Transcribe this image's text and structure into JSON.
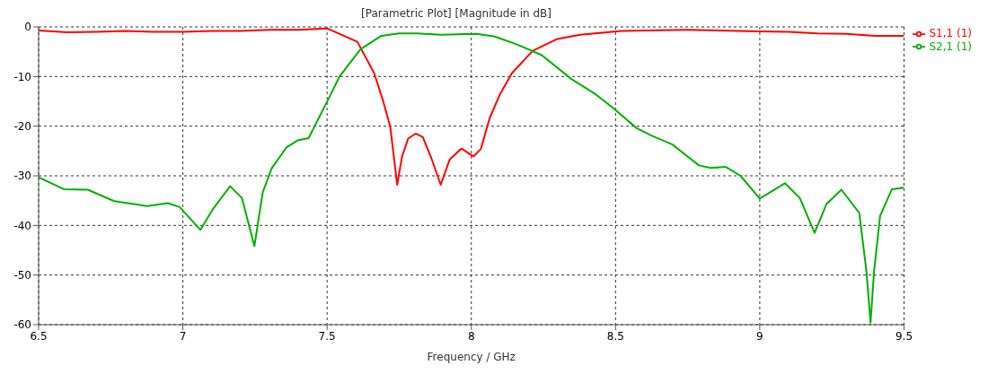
{
  "chart_data": {
    "type": "line",
    "title": "[Parametric Plot] [Magnitude in dB]",
    "xlabel": "Frequency / GHz",
    "xlim": [
      6.5,
      9.5
    ],
    "xticks": [
      6.5,
      7,
      7.5,
      8,
      8.5,
      9,
      9.5
    ],
    "ylim": [
      -60,
      0
    ],
    "yticks": [
      -60,
      -50,
      -40,
      -30,
      -20,
      -10,
      0
    ],
    "grid": true,
    "legend": "top right",
    "marker": "none",
    "line_style": "solid",
    "series": [
      {
        "name": "S1,1 (1)",
        "color": "#ff0000",
        "x": [
          6.5,
          6.6,
          6.7,
          6.8,
          6.9,
          7.0,
          7.1,
          7.2,
          7.3,
          7.4,
          7.5,
          7.605,
          7.663,
          7.693,
          7.719,
          7.743,
          7.76,
          7.781,
          7.807,
          7.832,
          7.863,
          7.894,
          7.925,
          7.966,
          8.007,
          8.033,
          8.064,
          8.1,
          8.141,
          8.213,
          8.295,
          8.377,
          8.52,
          8.75,
          9.0,
          9.1,
          9.2,
          9.3,
          9.4,
          9.5
        ],
        "values": [
          -0.7,
          -1.1,
          -1.0,
          -0.8,
          -1.0,
          -1.0,
          -0.8,
          -0.8,
          -0.6,
          -0.6,
          -0.3,
          -3.0,
          -9.3,
          -14.7,
          -20.1,
          -31.8,
          -26.1,
          -22.5,
          -21.5,
          -22.2,
          -26.7,
          -31.8,
          -26.7,
          -24.5,
          -26.1,
          -24.6,
          -18.3,
          -13.5,
          -9.3,
          -4.8,
          -2.5,
          -1.6,
          -0.8,
          -0.6,
          -0.9,
          -1.0,
          -1.3,
          -1.4,
          -1.8,
          -1.8
        ]
      },
      {
        "name": "S2,1 (1)",
        "color": "#00b000",
        "x": [
          6.5,
          6.587,
          6.67,
          6.762,
          6.876,
          6.948,
          6.989,
          7.061,
          7.102,
          7.164,
          7.205,
          7.248,
          7.277,
          7.308,
          7.359,
          7.4,
          7.436,
          7.503,
          7.544,
          7.616,
          7.688,
          7.75,
          7.812,
          7.894,
          8.017,
          8.079,
          8.161,
          8.244,
          8.347,
          8.429,
          8.491,
          8.573,
          8.624,
          8.697,
          8.789,
          8.83,
          8.882,
          8.933,
          9.0,
          9.087,
          9.139,
          9.19,
          9.231,
          9.283,
          9.345,
          9.37,
          9.384,
          9.396,
          9.417,
          9.458,
          9.499
        ],
        "values": [
          -30.3,
          -32.7,
          -32.8,
          -35.1,
          -36.1,
          -35.5,
          -36.3,
          -40.9,
          -36.9,
          -32.1,
          -34.5,
          -44.2,
          -33.3,
          -28.5,
          -24.3,
          -22.8,
          -22.4,
          -14.7,
          -9.9,
          -4.5,
          -1.8,
          -1.3,
          -1.3,
          -1.6,
          -1.4,
          -1.9,
          -3.6,
          -5.7,
          -10.5,
          -13.5,
          -16.3,
          -20.4,
          -21.9,
          -23.7,
          -27.9,
          -28.4,
          -28.2,
          -30.0,
          -34.6,
          -31.5,
          -34.5,
          -41.5,
          -35.7,
          -32.8,
          -37.5,
          -49.4,
          -59.6,
          -49.4,
          -38.1,
          -32.7,
          -32.4
        ]
      }
    ]
  }
}
